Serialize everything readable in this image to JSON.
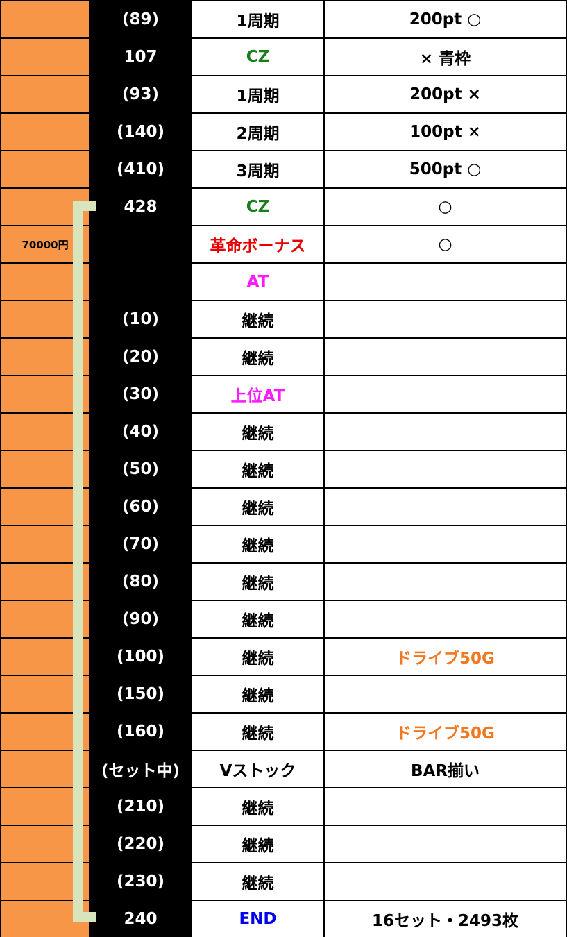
{
  "colors": {
    "green": "#1a7f1a",
    "red": "#e60000",
    "magenta": "#ff1aff",
    "orange": "#f07820",
    "blue": "#0000ee",
    "black": "#000000"
  },
  "rows": [
    {
      "money": "",
      "game": "(89)",
      "event": "1周期",
      "event_color": "black",
      "note": "200pt ○",
      "note_color": "black"
    },
    {
      "money": "",
      "game": "107",
      "event": "CZ",
      "event_color": "green",
      "note": "× 青枠",
      "note_color": "black"
    },
    {
      "money": "",
      "game": "(93)",
      "event": "1周期",
      "event_color": "black",
      "note": "200pt ×",
      "note_color": "black"
    },
    {
      "money": "",
      "game": "(140)",
      "event": "2周期",
      "event_color": "black",
      "note": "100pt ×",
      "note_color": "black"
    },
    {
      "money": "",
      "game": "(410)",
      "event": "3周期",
      "event_color": "black",
      "note": "500pt ○",
      "note_color": "black"
    },
    {
      "money": "",
      "game": "428",
      "event": "CZ",
      "event_color": "green",
      "note": "○",
      "note_color": "black"
    },
    {
      "money": "70000円",
      "game": "",
      "event": "革命ボーナス",
      "event_color": "red",
      "note": "○",
      "note_color": "black"
    },
    {
      "money": "",
      "game": "",
      "event": "AT",
      "event_color": "magenta",
      "note": "",
      "note_color": "black"
    },
    {
      "money": "",
      "game": "(10)",
      "event": "継続",
      "event_color": "black",
      "note": "",
      "note_color": "black"
    },
    {
      "money": "",
      "game": "(20)",
      "event": "継続",
      "event_color": "black",
      "note": "",
      "note_color": "black"
    },
    {
      "money": "",
      "game": "(30)",
      "event": "上位AT",
      "event_color": "magenta",
      "note": "",
      "note_color": "black"
    },
    {
      "money": "",
      "game": "(40)",
      "event": "継続",
      "event_color": "black",
      "note": "",
      "note_color": "black"
    },
    {
      "money": "",
      "game": "(50)",
      "event": "継続",
      "event_color": "black",
      "note": "",
      "note_color": "black"
    },
    {
      "money": "",
      "game": "(60)",
      "event": "継続",
      "event_color": "black",
      "note": "",
      "note_color": "black"
    },
    {
      "money": "",
      "game": "(70)",
      "event": "継続",
      "event_color": "black",
      "note": "",
      "note_color": "black"
    },
    {
      "money": "",
      "game": "(80)",
      "event": "継続",
      "event_color": "black",
      "note": "",
      "note_color": "black"
    },
    {
      "money": "",
      "game": "(90)",
      "event": "継続",
      "event_color": "black",
      "note": "",
      "note_color": "black"
    },
    {
      "money": "",
      "game": "(100)",
      "event": "継続",
      "event_color": "black",
      "note": "ドライブ50G",
      "note_color": "orange"
    },
    {
      "money": "",
      "game": "(150)",
      "event": "継続",
      "event_color": "black",
      "note": "",
      "note_color": "black"
    },
    {
      "money": "",
      "game": "(160)",
      "event": "継続",
      "event_color": "black",
      "note": "ドライブ50G",
      "note_color": "orange"
    },
    {
      "money": "",
      "game": "(セット中)",
      "event": "Vストック",
      "event_color": "black",
      "note": "BAR揃い",
      "note_color": "black"
    },
    {
      "money": "",
      "game": "(210)",
      "event": "継続",
      "event_color": "black",
      "note": "",
      "note_color": "black"
    },
    {
      "money": "",
      "game": "(220)",
      "event": "継続",
      "event_color": "black",
      "note": "",
      "note_color": "black"
    },
    {
      "money": "",
      "game": "(230)",
      "event": "継続",
      "event_color": "black",
      "note": "",
      "note_color": "black"
    },
    {
      "money": "",
      "game": "240",
      "event": "END",
      "event_color": "blue",
      "note": "16セット・2493枚",
      "note_color": "black"
    }
  ]
}
